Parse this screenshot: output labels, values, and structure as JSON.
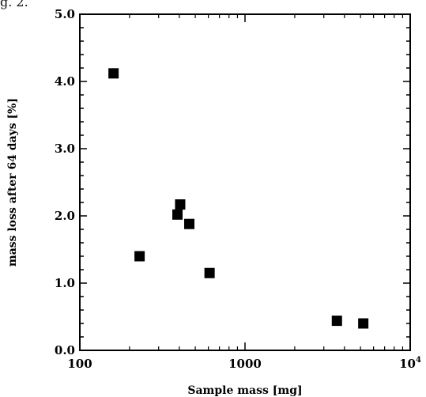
{
  "figure_caption": "g. 2.",
  "colors": {
    "marker": "#000000",
    "axis": "#000000",
    "background": "#ffffff"
  },
  "chart_data": {
    "type": "scatter",
    "title": "",
    "xlabel": "Sample mass [mg]",
    "ylabel": "mass loss after 64 days [%]",
    "xscale": "log",
    "xlim": [
      100,
      10000
    ],
    "ylim": [
      0,
      5
    ],
    "grid": false,
    "legend": "none",
    "x_ticks": [
      {
        "value": 100,
        "label": "100"
      },
      {
        "value": 1000,
        "label": "1000"
      },
      {
        "value": 10000,
        "label": "10",
        "exponent": "4"
      }
    ],
    "y_ticks": [
      {
        "value": 0,
        "label": "0.0"
      },
      {
        "value": 1,
        "label": "1.0"
      },
      {
        "value": 2,
        "label": "2.0"
      },
      {
        "value": 3,
        "label": "3.0"
      },
      {
        "value": 4,
        "label": "4.0"
      },
      {
        "value": 5,
        "label": "5.0"
      }
    ],
    "series": [
      {
        "marker": "filled-square",
        "points": [
          {
            "x": 160,
            "y": 4.12
          },
          {
            "x": 230,
            "y": 1.4
          },
          {
            "x": 390,
            "y": 2.02
          },
          {
            "x": 405,
            "y": 2.17
          },
          {
            "x": 460,
            "y": 1.88
          },
          {
            "x": 610,
            "y": 1.15
          },
          {
            "x": 3600,
            "y": 0.44
          },
          {
            "x": 5200,
            "y": 0.4
          }
        ]
      }
    ]
  }
}
